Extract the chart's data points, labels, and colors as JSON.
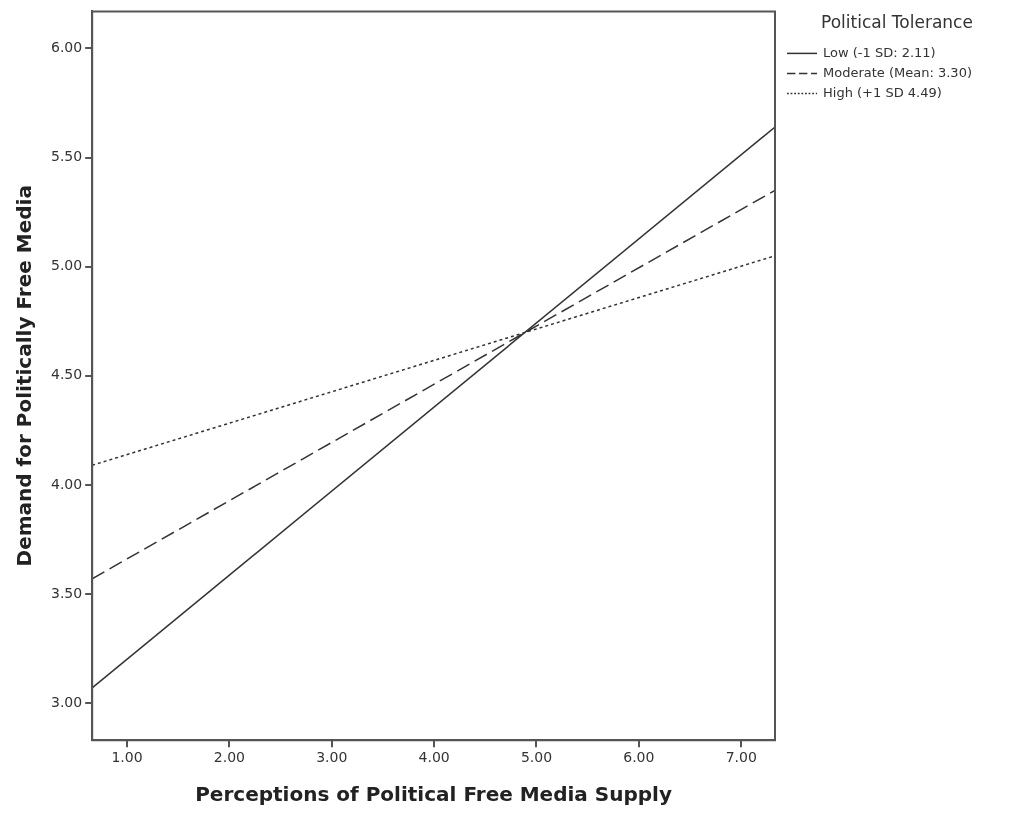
{
  "chart_data": {
    "type": "line",
    "xlabel": "Perceptions of Political Free Media Supply",
    "ylabel": "Demand for Politically Free Media",
    "legend_title": "Political Tolerance",
    "x": [
      0.66,
      7.33
    ],
    "series": [
      {
        "name": "Low (-1 SD: 2.11)",
        "color": "#333333",
        "line_style": "solid",
        "values": [
          3.07,
          5.64
        ]
      },
      {
        "name": "Moderate (Mean: 3.30)",
        "color": "#333333",
        "line_style": "dashed",
        "values": [
          3.57,
          5.35
        ]
      },
      {
        "name": "High (+1 SD 4.49)",
        "color": "#333333",
        "line_style": "dotted",
        "values": [
          4.09,
          5.05
        ]
      }
    ],
    "xlim": [
      0.66,
      7.33
    ],
    "xticks": [
      {
        "value": 1,
        "label": "1.00"
      },
      {
        "value": 2,
        "label": "2.00"
      },
      {
        "value": 3,
        "label": "3.00"
      },
      {
        "value": 4,
        "label": "4.00"
      },
      {
        "value": 5,
        "label": "5.00"
      },
      {
        "value": 6,
        "label": "6.00"
      },
      {
        "value": 7,
        "label": "7.00"
      }
    ],
    "ylim": [
      2.83,
      6.17
    ],
    "yticks": [
      {
        "value": 3,
        "label": "3.00"
      },
      {
        "value": 3.5,
        "label": "3.50"
      },
      {
        "value": 4,
        "label": "4.00"
      },
      {
        "value": 4.5,
        "label": "4.50"
      },
      {
        "value": 5,
        "label": "5.00"
      },
      {
        "value": 5.5,
        "label": "5.50"
      },
      {
        "value": 6,
        "label": "6.00"
      }
    ],
    "grid": false,
    "legend": "top right",
    "marker": "none"
  }
}
